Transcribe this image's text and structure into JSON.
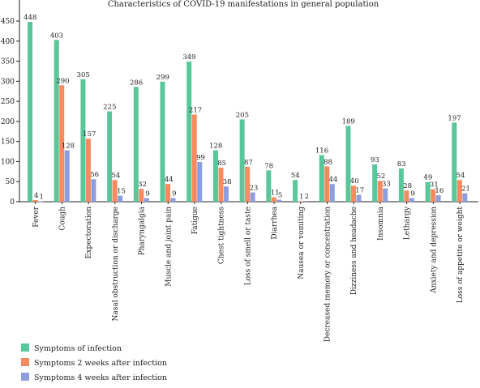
{
  "chart_data": {
    "type": "bar",
    "title": "Characteristics of COVID-19 manifestations in general population",
    "xlabel": "",
    "ylabel": "",
    "ylim": [
      0,
      450
    ],
    "yticks": [
      0,
      50,
      100,
      150,
      200,
      250,
      300,
      350,
      400,
      450
    ],
    "grid": false,
    "legend_position": "bottom-left",
    "categories": [
      "Fever",
      "Cough",
      "Expectoration",
      "Nasal obstruction or discharge",
      "Pharyngalgia",
      "Muscle and joint pain",
      "Fatigue",
      "Chest tightness",
      "Loss of smell or taste",
      "Diarrhea",
      "Nausea or vomiting",
      "Decreased memory or concentration",
      "Dizziness and headache",
      "Insomnia",
      "Lethargy",
      "Anxiety and depression",
      "Loss of appetite or weight"
    ],
    "series": [
      {
        "name": "Symptoms of infection",
        "color": "#5ac79a",
        "values": [
          448,
          403,
          305,
          225,
          286,
          299,
          349,
          128,
          205,
          78,
          54,
          116,
          189,
          93,
          83,
          49,
          197
        ]
      },
      {
        "name": "Symptoms 2 weeks after infection",
        "color": "#f88a5f",
        "values": [
          4,
          290,
          157,
          54,
          32,
          44,
          217,
          85,
          87,
          11,
          1,
          88,
          40,
          52,
          28,
          31,
          54
        ]
      },
      {
        "name": "Symptoms 4 weeks after infection",
        "color": "#8d9ee0",
        "values": [
          1,
          128,
          56,
          15,
          9,
          9,
          99,
          38,
          23,
          5,
          2,
          44,
          17,
          33,
          9,
          16,
          21
        ]
      }
    ]
  }
}
